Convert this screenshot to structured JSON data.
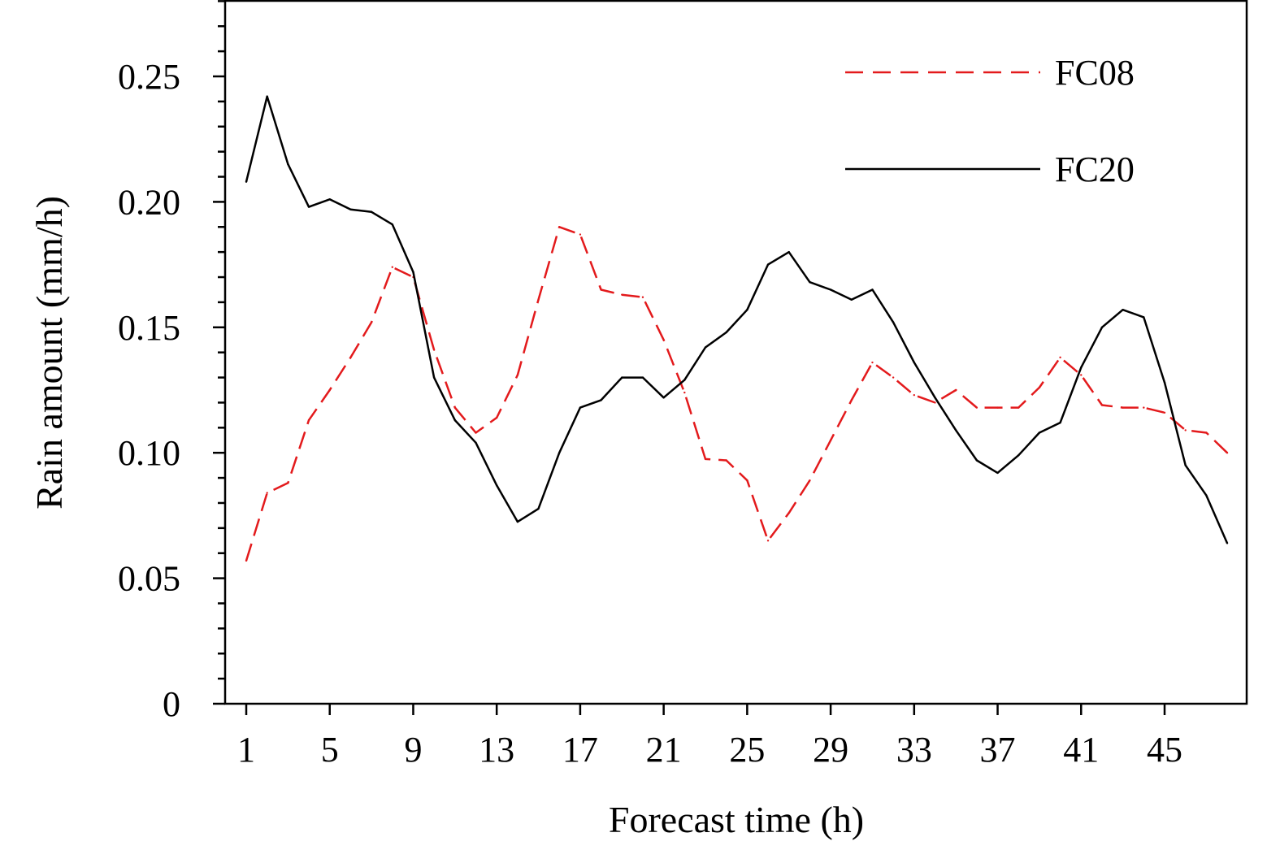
{
  "chart_data": {
    "type": "line",
    "title": "",
    "xlabel": "Forecast time (h)",
    "ylabel": "Rain amount (mm/h)",
    "xlim": [
      0.5,
      49
    ],
    "ylim": [
      0,
      0.28
    ],
    "x_ticks": [
      1,
      5,
      9,
      13,
      17,
      21,
      25,
      29,
      33,
      37,
      41,
      45
    ],
    "y_ticks": [
      0,
      0.05,
      0.1,
      0.15,
      0.2,
      0.25
    ],
    "y_tick_labels": [
      "0",
      "0.05",
      "0.10",
      "0.15",
      "0.20",
      "0.25"
    ],
    "grid": false,
    "legend_position": "top-right",
    "x": [
      1,
      2,
      3,
      4,
      5,
      6,
      7,
      8,
      9,
      10,
      11,
      12,
      13,
      14,
      15,
      16,
      17,
      18,
      19,
      20,
      21,
      22,
      23,
      24,
      25,
      26,
      27,
      28,
      29,
      30,
      31,
      32,
      33,
      34,
      35,
      36,
      37,
      38,
      39,
      40,
      41,
      42,
      43,
      44,
      45,
      46,
      47,
      48
    ],
    "series": [
      {
        "name": "FC08",
        "color": "#e31a1c",
        "style": "dashed",
        "values": [
          0.057,
          0.084,
          0.088,
          0.113,
          0.125,
          0.138,
          0.152,
          0.174,
          0.17,
          0.141,
          0.118,
          0.108,
          0.114,
          0.131,
          0.161,
          0.19,
          0.187,
          0.165,
          0.163,
          0.162,
          0.145,
          0.124,
          0.0975,
          0.097,
          0.089,
          0.065,
          0.076,
          0.089,
          0.105,
          0.121,
          0.136,
          0.13,
          0.123,
          0.12,
          0.125,
          0.118,
          0.118,
          0.118,
          0.126,
          0.138,
          0.131,
          0.119,
          0.118,
          0.118,
          0.116,
          0.109,
          0.108,
          0.1
        ]
      },
      {
        "name": "FC20",
        "color": "#000000",
        "style": "solid",
        "values": [
          0.208,
          0.242,
          0.215,
          0.198,
          0.201,
          0.197,
          0.196,
          0.191,
          0.172,
          0.13,
          0.113,
          0.104,
          0.087,
          0.0725,
          0.0777,
          0.1,
          0.118,
          0.121,
          0.13,
          0.13,
          0.122,
          0.129,
          0.142,
          0.148,
          0.157,
          0.175,
          0.18,
          0.168,
          0.165,
          0.161,
          0.165,
          0.152,
          0.136,
          0.122,
          0.109,
          0.097,
          0.092,
          0.099,
          0.108,
          0.112,
          0.134,
          0.15,
          0.157,
          0.154,
          0.128,
          0.095,
          0.083,
          0.064
        ]
      }
    ]
  }
}
